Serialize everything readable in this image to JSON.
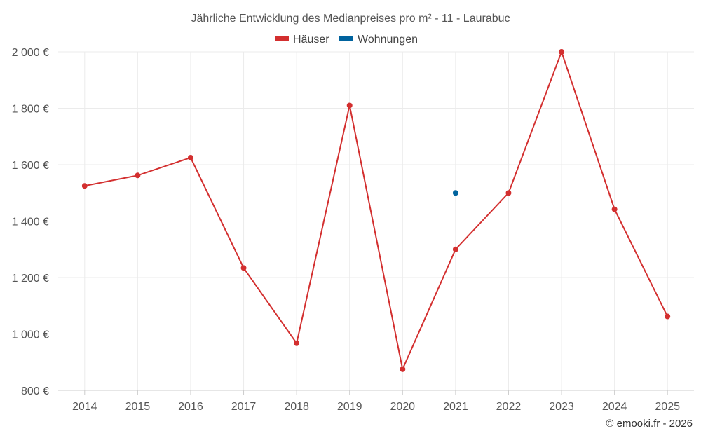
{
  "chart_data": {
    "type": "line",
    "title": "Jährliche Entwicklung des Medianpreises pro m² - 11 - Laurabuc",
    "categories": [
      "2014",
      "2015",
      "2016",
      "2017",
      "2018",
      "2019",
      "2020",
      "2021",
      "2022",
      "2023",
      "2024",
      "2025"
    ],
    "series": [
      {
        "name": "Häuser",
        "color": "#d32f2f",
        "values": [
          1525,
          1562,
          1625,
          1234,
          967,
          1810,
          875,
          1300,
          1500,
          2000,
          1442,
          1062
        ]
      },
      {
        "name": "Wohnungen",
        "color": "#00639e",
        "values": [
          null,
          null,
          null,
          null,
          null,
          null,
          null,
          1500,
          null,
          null,
          null,
          null
        ]
      }
    ],
    "yticks": [
      800,
      1000,
      1200,
      1400,
      1600,
      1800,
      2000
    ],
    "ytick_labels": [
      "800 €",
      "1 000 €",
      "1 200 €",
      "1 400 €",
      "1 600 €",
      "1 800 €",
      "2 000 €"
    ],
    "ylim": [
      800,
      2000
    ],
    "grid": true,
    "legend_position": "top-center"
  },
  "credit": "© emooki.fr - 2026"
}
